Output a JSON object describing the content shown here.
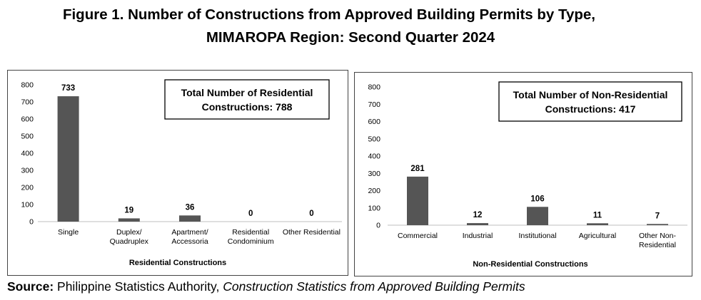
{
  "figure": {
    "title_line1": "Figure 1. Number of Constructions from Approved Building Permits by Type,",
    "title_line2": "MIMAROPA Region: Second Quarter 2024"
  },
  "source": {
    "label": "Source:",
    "org": "Philippine Statistics Authority,",
    "publication": "Construction Statistics from Approved Building Permits"
  },
  "colors": {
    "bar": "#555555",
    "axis": "#bfbfbf"
  },
  "chart_data": [
    {
      "type": "bar",
      "categories": [
        [
          "Single"
        ],
        [
          "Duplex/",
          "Quadruplex"
        ],
        [
          "Apartment/",
          "Accessoria"
        ],
        [
          "Residential",
          "Condominium"
        ],
        [
          "Other Residential"
        ]
      ],
      "values": [
        733,
        19,
        36,
        0,
        0
      ],
      "xlabel": "Residential Constructions",
      "ylabel": "",
      "ylim": [
        0,
        800
      ],
      "yticks": [
        0,
        100,
        200,
        300,
        400,
        500,
        600,
        700,
        800
      ],
      "annotation": [
        "Total Number of Residential",
        "Constructions: 788"
      ],
      "grid": false
    },
    {
      "type": "bar",
      "categories": [
        [
          "Commercial"
        ],
        [
          "Industrial"
        ],
        [
          "Institutional"
        ],
        [
          "Agricultural"
        ],
        [
          "Other Non-",
          "Residential"
        ]
      ],
      "values": [
        281,
        12,
        106,
        11,
        7
      ],
      "xlabel": "Non-Residential Constructions",
      "ylabel": "",
      "ylim": [
        0,
        800
      ],
      "yticks": [
        0,
        100,
        200,
        300,
        400,
        500,
        600,
        700,
        800
      ],
      "annotation": [
        "Total Number of Non-Residential",
        "Constructions: 417"
      ],
      "grid": false
    }
  ]
}
